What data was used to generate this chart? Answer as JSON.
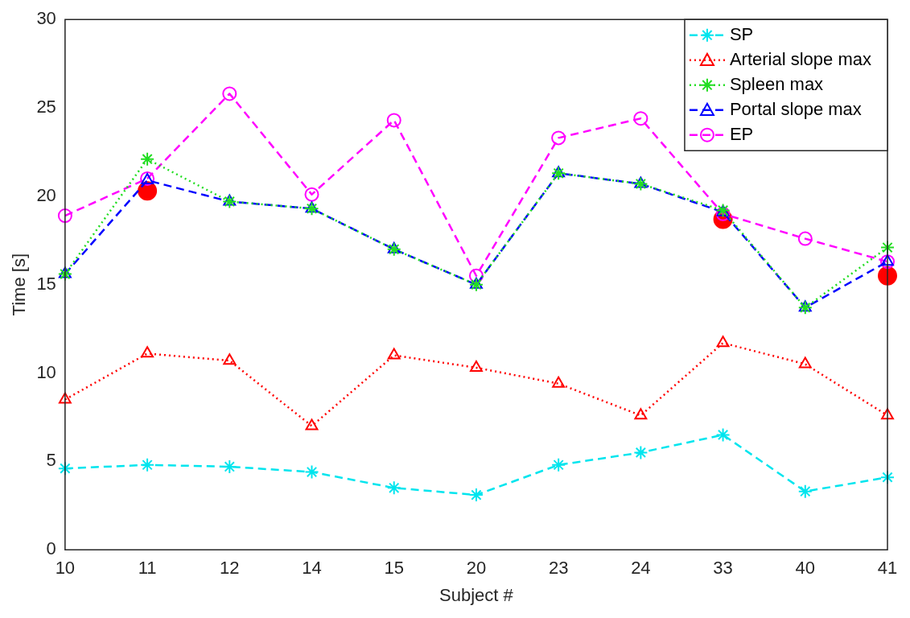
{
  "chart_data": {
    "type": "line",
    "xlabel": "Subject #",
    "ylabel": "Time [s]",
    "categories": [
      "10",
      "11",
      "12",
      "14",
      "15",
      "20",
      "23",
      "24",
      "33",
      "40",
      "41"
    ],
    "series": [
      {
        "name": "SP",
        "color": "#00e5ee",
        "marker": "cross",
        "line_style": "dashed",
        "values": [
          4.6,
          4.8,
          4.7,
          4.4,
          3.5,
          3.1,
          4.8,
          5.5,
          6.5,
          3.3,
          4.1
        ]
      },
      {
        "name": "Arterial slope max",
        "color": "#ff0000",
        "marker": "triangle",
        "line_style": "dotted",
        "values": [
          8.5,
          11.1,
          10.7,
          7.0,
          11.0,
          10.3,
          9.4,
          7.6,
          11.7,
          10.5,
          7.6
        ]
      },
      {
        "name": "Spleen max",
        "color": "#22dd22",
        "marker": "cross",
        "line_style": "dotted",
        "values": [
          15.6,
          22.1,
          19.7,
          19.3,
          17.0,
          15.0,
          21.3,
          20.7,
          19.2,
          13.7,
          17.1
        ]
      },
      {
        "name": "Portal slope max",
        "color": "#0000ff",
        "marker": "triangle",
        "line_style": "dashed",
        "values": [
          15.6,
          20.9,
          19.7,
          19.3,
          17.0,
          15.0,
          21.3,
          20.7,
          19.1,
          13.7,
          16.3
        ]
      },
      {
        "name": "EP",
        "color": "#ff00ff",
        "marker": "circle",
        "line_style": "dashed",
        "values": [
          18.9,
          21.0,
          25.8,
          20.1,
          24.3,
          15.5,
          23.3,
          24.4,
          19.0,
          17.6,
          16.3
        ]
      },
      {
        "type": "scatter",
        "color": "#ff0000",
        "marker": "circle",
        "x": [
          "11",
          "33",
          "41"
        ],
        "values": [
          20.3,
          18.7,
          15.5
        ]
      }
    ],
    "ylim": [
      0,
      30
    ],
    "yticks": [
      0,
      5,
      10,
      15,
      20,
      25,
      30
    ],
    "grid": false,
    "legend": "top right"
  }
}
